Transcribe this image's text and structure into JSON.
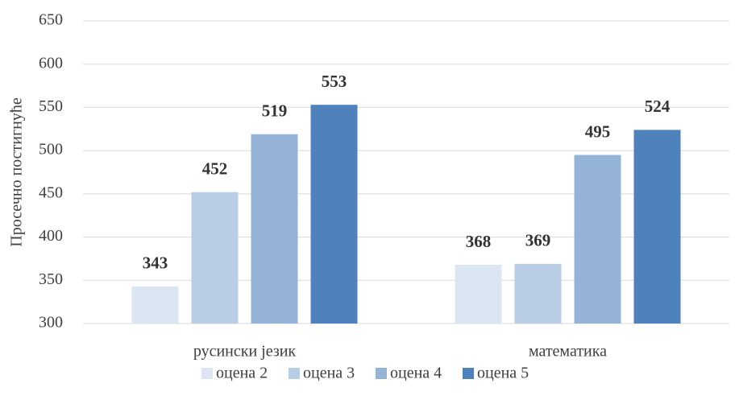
{
  "chart_data": {
    "type": "bar",
    "y_label": "Просечно постигнуће",
    "categories": [
      "русински језик",
      "математика"
    ],
    "series": [
      {
        "name": "оцена 2",
        "color": "#dce6f2",
        "values": [
          343,
          368
        ]
      },
      {
        "name": "оцена 3",
        "color": "#b9cde5",
        "values": [
          452,
          369
        ]
      },
      {
        "name": "оцена 4",
        "color": "#95b3d7",
        "values": [
          519,
          495
        ]
      },
      {
        "name": "оцена 5",
        "color": "#4f81bd",
        "values": [
          553,
          524
        ]
      }
    ],
    "ylim": [
      300,
      650
    ],
    "yticks": [
      300,
      350,
      400,
      450,
      500,
      550,
      600,
      650
    ],
    "grid": true,
    "legend": "bottom"
  }
}
